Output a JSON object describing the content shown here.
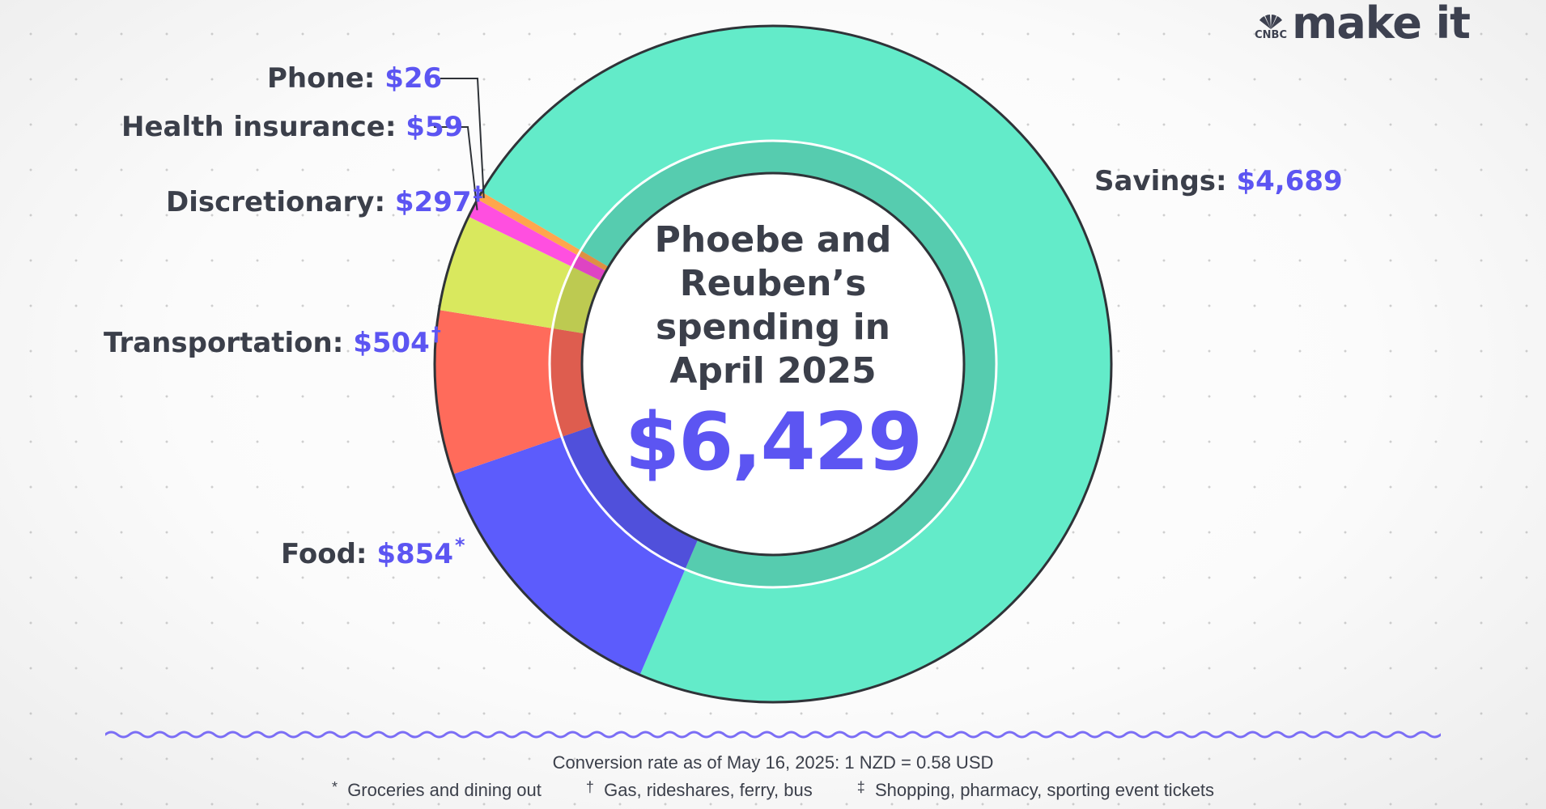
{
  "center": {
    "title_lines": [
      "Phoebe and",
      "Reuben’s",
      "spending in",
      "April 2025"
    ],
    "total": "$6,429"
  },
  "logo": {
    "brand": "CNBC",
    "name": "make it"
  },
  "colors": {
    "accent": "#5c55f2",
    "text": "#3b3f4a",
    "wave": "#7b6ef5"
  },
  "chart_data": {
    "type": "pie",
    "donut": true,
    "title": "Phoebe and Reuben’s spending in April 2025",
    "total": 6429,
    "slices": [
      {
        "name": "Savings",
        "value": 4689,
        "label": "$4,689",
        "mark": "",
        "color": "#63ebc9"
      },
      {
        "name": "Food",
        "value": 854,
        "label": "$854",
        "mark": "*",
        "color": "#5c5cfc"
      },
      {
        "name": "Transportation",
        "value": 504,
        "label": "$504",
        "mark": "†",
        "color": "#ff6b5b"
      },
      {
        "name": "Discretionary",
        "value": 297,
        "label": "$297",
        "mark": "‡",
        "color": "#d9e85e"
      },
      {
        "name": "Health insurance",
        "value": 59,
        "label": "$59",
        "mark": "",
        "color": "#ff4fe0"
      },
      {
        "name": "Phone",
        "value": 26,
        "label": "$26",
        "mark": "",
        "color": "#ffa64d"
      }
    ]
  },
  "footer": {
    "conversion": "Conversion rate as of May 16, 2025: 1 NZD = 0.58 USD",
    "notes": [
      {
        "symbol": "*",
        "text": "Groceries and dining out"
      },
      {
        "symbol": "†",
        "text": "Gas, rideshares, ferry, bus"
      },
      {
        "symbol": "‡",
        "text": "Shopping, pharmacy, sporting event tickets"
      }
    ]
  }
}
